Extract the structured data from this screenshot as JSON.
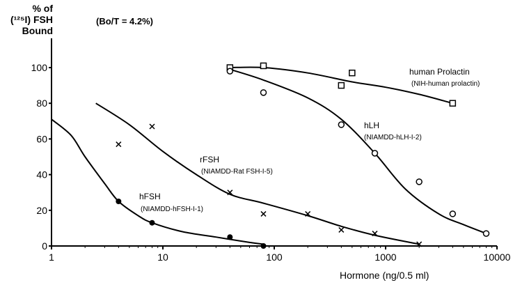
{
  "chart_data": {
    "type": "scatter",
    "ylabel_lines": [
      "% of",
      "(¹²⁵I) FSH",
      "Bound"
    ],
    "ratio_note": "(Bo/T = 4.2%)",
    "xlabel": "Hormone (ng/0.5 ml)",
    "x_scale": "log",
    "xlim": [
      1,
      10000
    ],
    "ylim": [
      0,
      110
    ],
    "x_ticks": [
      1,
      10,
      100,
      1000,
      10000
    ],
    "x_tick_labels": [
      "1",
      "10",
      "100",
      "1000",
      "10000"
    ],
    "y_ticks": [
      0,
      20,
      40,
      60,
      80,
      100
    ],
    "y_tick_labels": [
      "0",
      "20",
      "40",
      "60",
      "80",
      "100"
    ],
    "grid": false,
    "series": [
      {
        "name": "human Prolactin",
        "sub": "(NIH-human prolactin)",
        "marker": "square",
        "x": [
          40,
          80,
          500,
          400,
          4000
        ],
        "y": [
          100,
          101,
          97,
          90,
          80
        ],
        "curve": [
          [
            40,
            100
          ],
          [
            80,
            100
          ],
          [
            200,
            97
          ],
          [
            500,
            92
          ],
          [
            1000,
            89
          ],
          [
            2000,
            85
          ],
          [
            4000,
            80
          ]
        ]
      },
      {
        "name": "hLH",
        "sub": "(NIAMDD-hLH-I-2)",
        "marker": "circle",
        "x": [
          40,
          80,
          400,
          800,
          2000,
          4000,
          8000
        ],
        "y": [
          98,
          86,
          68,
          52,
          36,
          18,
          7
        ],
        "curve": [
          [
            40,
            99
          ],
          [
            80,
            93
          ],
          [
            200,
            83
          ],
          [
            400,
            71
          ],
          [
            800,
            52
          ],
          [
            1500,
            32
          ],
          [
            3000,
            18
          ],
          [
            5000,
            12
          ],
          [
            8000,
            7
          ]
        ]
      },
      {
        "name": "rFSH",
        "sub": "(NIAMDD-Rat FSH-I-5)",
        "marker": "cross",
        "x": [
          4,
          8,
          40,
          80,
          200,
          400,
          800,
          2000
        ],
        "y": [
          57,
          67,
          30,
          18,
          18,
          9,
          7,
          1
        ],
        "curve": [
          [
            2.5,
            80
          ],
          [
            5,
            68
          ],
          [
            10,
            53
          ],
          [
            20,
            40
          ],
          [
            40,
            29
          ],
          [
            80,
            24
          ],
          [
            200,
            17
          ],
          [
            400,
            11
          ],
          [
            800,
            6
          ],
          [
            2000,
            1
          ]
        ]
      },
      {
        "name": "hFSH",
        "sub": "(NIAMDD-hFSH-I-1)",
        "marker": "dot",
        "x": [
          4,
          8,
          40,
          80
        ],
        "y": [
          25,
          13,
          5,
          0
        ],
        "curve": [
          [
            1,
            71
          ],
          [
            1.5,
            62
          ],
          [
            2,
            50
          ],
          [
            3,
            35
          ],
          [
            4,
            25
          ],
          [
            6,
            17
          ],
          [
            8,
            13
          ],
          [
            15,
            8
          ],
          [
            30,
            5
          ],
          [
            60,
            2
          ],
          [
            80,
            1
          ]
        ]
      }
    ]
  }
}
